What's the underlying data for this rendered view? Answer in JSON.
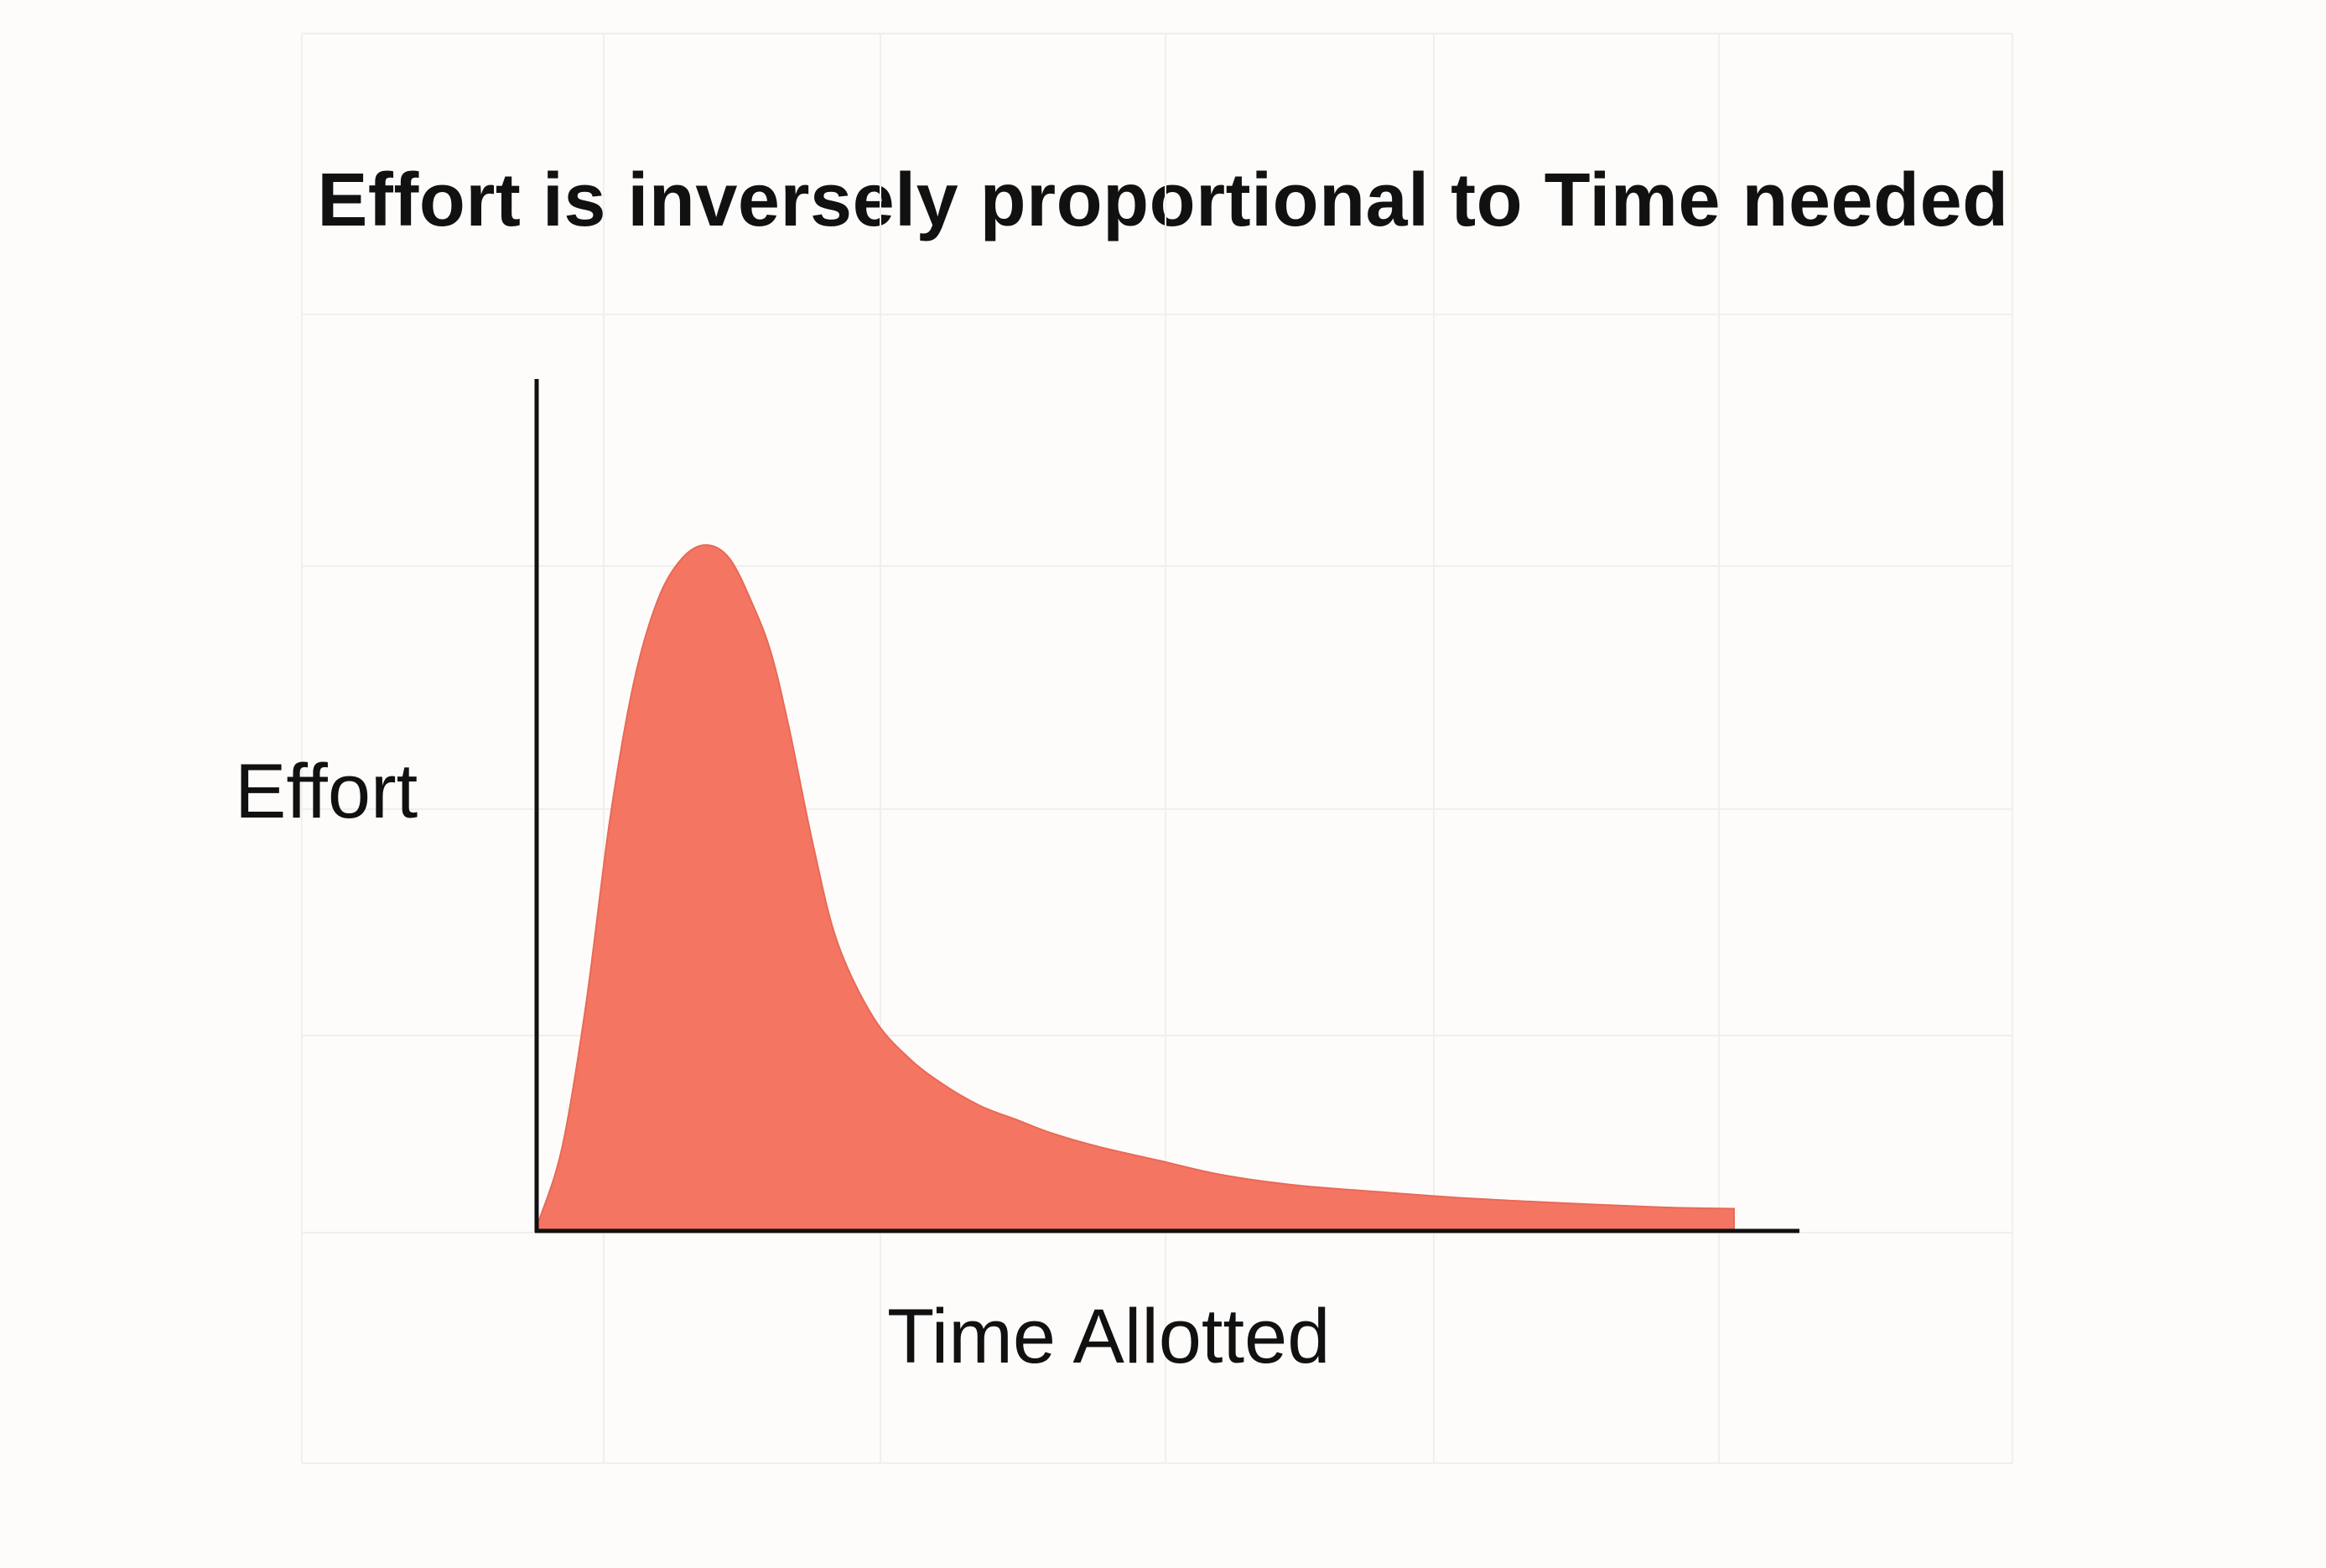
{
  "chart_data": {
    "type": "area",
    "title": "Effort is inversely proportional to Time needed",
    "xlabel": "Time Allotted",
    "ylabel": "Effort",
    "xlim": [
      0,
      100
    ],
    "ylim": [
      0,
      100
    ],
    "grid": false,
    "ticks_shown": false,
    "series": [
      {
        "color": "#f47562",
        "x": [
          0,
          2,
          4,
          6,
          8,
          10,
          12,
          14,
          16,
          18,
          19.5,
          21,
          23,
          25,
          28,
          31,
          34,
          37,
          40,
          43,
          47,
          52,
          57,
          63,
          70,
          78,
          86,
          94,
          100
        ],
        "y": [
          1,
          12,
          33,
          60,
          80,
          92,
          98,
          100,
          98,
          91,
          84,
          73,
          56,
          42,
          31,
          25,
          21,
          18,
          16,
          14,
          12,
          10,
          8,
          6.5,
          5.5,
          4.5,
          3.8,
          3.2,
          3
        ]
      }
    ]
  }
}
